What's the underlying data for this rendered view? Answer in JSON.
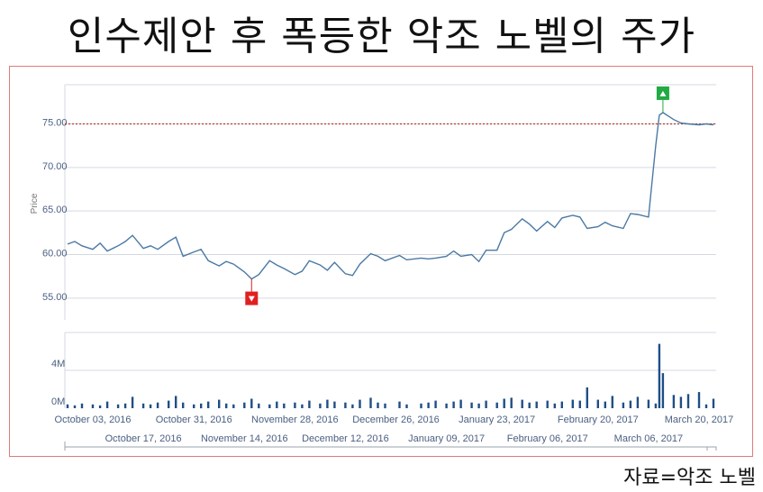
{
  "title": "인수제안 후 폭등한 악조 노벨의 주가",
  "source": "자료=악조 노벨",
  "colors": {
    "line": "#4a79a5",
    "bar": "#1f4e86",
    "ref": "#c0392b",
    "down_marker": "#e02020",
    "up_marker": "#22aa44",
    "frame": "#e07a7a"
  },
  "chart_data": [
    {
      "type": "line",
      "ylabel": "Price",
      "ylim": [
        52.5,
        79.5
      ],
      "yticks": [
        55,
        60,
        65,
        70,
        75
      ],
      "ytick_labels": [
        "55.00",
        "60.00",
        "65.00",
        "70.00",
        "75.00"
      ],
      "reference_line": 75.0,
      "grid": true,
      "x_tick_labels_upper": [
        "October 03, 2016",
        "October 31, 2016",
        "November 28, 2016",
        "December 26, 2016",
        "January 23, 2017",
        "February 20, 2017",
        "March 20, 2017"
      ],
      "x_tick_labels_lower": [
        "October 17, 2016",
        "November 14, 2016",
        "December 12, 2016",
        "January 09, 2017",
        "February 06, 2017",
        "March 06, 2017"
      ],
      "x": [
        "2016-09-26",
        "2016-09-28",
        "2016-09-30",
        "2016-10-03",
        "2016-10-05",
        "2016-10-07",
        "2016-10-10",
        "2016-10-12",
        "2016-10-14",
        "2016-10-17",
        "2016-10-19",
        "2016-10-21",
        "2016-10-24",
        "2016-10-26",
        "2016-10-28",
        "2016-10-31",
        "2016-11-02",
        "2016-11-04",
        "2016-11-07",
        "2016-11-09",
        "2016-11-11",
        "2016-11-14",
        "2016-11-16",
        "2016-11-18",
        "2016-11-21",
        "2016-11-23",
        "2016-11-25",
        "2016-11-28",
        "2016-11-30",
        "2016-12-02",
        "2016-12-05",
        "2016-12-07",
        "2016-12-09",
        "2016-12-12",
        "2016-12-14",
        "2016-12-16",
        "2016-12-19",
        "2016-12-21",
        "2016-12-23",
        "2016-12-27",
        "2016-12-29",
        "2017-01-02",
        "2017-01-04",
        "2017-01-06",
        "2017-01-09",
        "2017-01-11",
        "2017-01-13",
        "2017-01-16",
        "2017-01-18",
        "2017-01-20",
        "2017-01-23",
        "2017-01-25",
        "2017-01-27",
        "2017-01-30",
        "2017-02-01",
        "2017-02-03",
        "2017-02-06",
        "2017-02-08",
        "2017-02-10",
        "2017-02-13",
        "2017-02-15",
        "2017-02-17",
        "2017-02-20",
        "2017-02-22",
        "2017-02-24",
        "2017-02-27",
        "2017-03-01",
        "2017-03-03",
        "2017-03-06",
        "2017-03-08",
        "2017-03-09",
        "2017-03-10",
        "2017-03-13",
        "2017-03-15",
        "2017-03-17",
        "2017-03-20",
        "2017-03-22",
        "2017-03-24"
      ],
      "series": [
        {
          "values": [
            61.2,
            61.5,
            61.0,
            60.6,
            61.3,
            60.4,
            61.0,
            61.5,
            62.2,
            60.7,
            61.0,
            60.6,
            61.5,
            62.0,
            59.8,
            60.3,
            60.6,
            59.3,
            58.7,
            59.2,
            58.9,
            58.0,
            57.2,
            57.7,
            59.3,
            58.8,
            58.4,
            57.7,
            58.1,
            59.3,
            58.8,
            58.2,
            59.1,
            57.8,
            57.6,
            58.9,
            60.1,
            59.8,
            59.3,
            59.9,
            59.4,
            59.6,
            59.5,
            59.6,
            59.8,
            60.4,
            59.8,
            60.0,
            59.2,
            60.5,
            60.5,
            62.5,
            62.9,
            64.1,
            63.5,
            62.7,
            63.8,
            63.1,
            64.2,
            64.5,
            64.3,
            63.0,
            63.2,
            63.7,
            63.3,
            63.0,
            64.7,
            64.6,
            64.3,
            72.5,
            76.0,
            76.3,
            75.5,
            75.1,
            75.0,
            74.9,
            75.0,
            74.9
          ]
        }
      ],
      "markers": [
        {
          "type": "down",
          "x": "2016-11-16",
          "value": 57.2
        },
        {
          "type": "up",
          "x": "2017-03-10",
          "value": 76.3
        }
      ]
    },
    {
      "type": "bar",
      "ylabel": "",
      "ylim": [
        0,
        8
      ],
      "yticks": [
        0,
        4
      ],
      "ytick_labels": [
        "0M",
        "4M"
      ],
      "volume_millions": [
        0.4,
        0.3,
        0.5,
        0.4,
        0.3,
        0.7,
        0.4,
        0.5,
        1.2,
        0.5,
        0.4,
        0.6,
        0.8,
        1.3,
        0.6,
        0.4,
        0.5,
        0.7,
        0.9,
        0.5,
        0.4,
        0.6,
        1.0,
        0.5,
        0.4,
        0.7,
        0.5,
        0.6,
        0.4,
        0.8,
        0.5,
        0.9,
        0.7,
        0.6,
        0.4,
        0.9,
        1.1,
        0.6,
        0.5,
        0.7,
        0.4,
        0.5,
        0.6,
        0.8,
        0.5,
        0.7,
        0.9,
        0.6,
        0.5,
        0.8,
        0.6,
        1.0,
        1.1,
        0.9,
        0.6,
        0.7,
        0.8,
        0.5,
        0.7,
        0.9,
        0.8,
        2.2,
        0.9,
        0.7,
        1.3,
        0.6,
        0.8,
        1.2,
        0.9,
        0.5,
        6.8,
        3.7,
        1.4,
        1.2,
        1.5,
        1.7,
        0.4,
        1.0
      ]
    }
  ]
}
